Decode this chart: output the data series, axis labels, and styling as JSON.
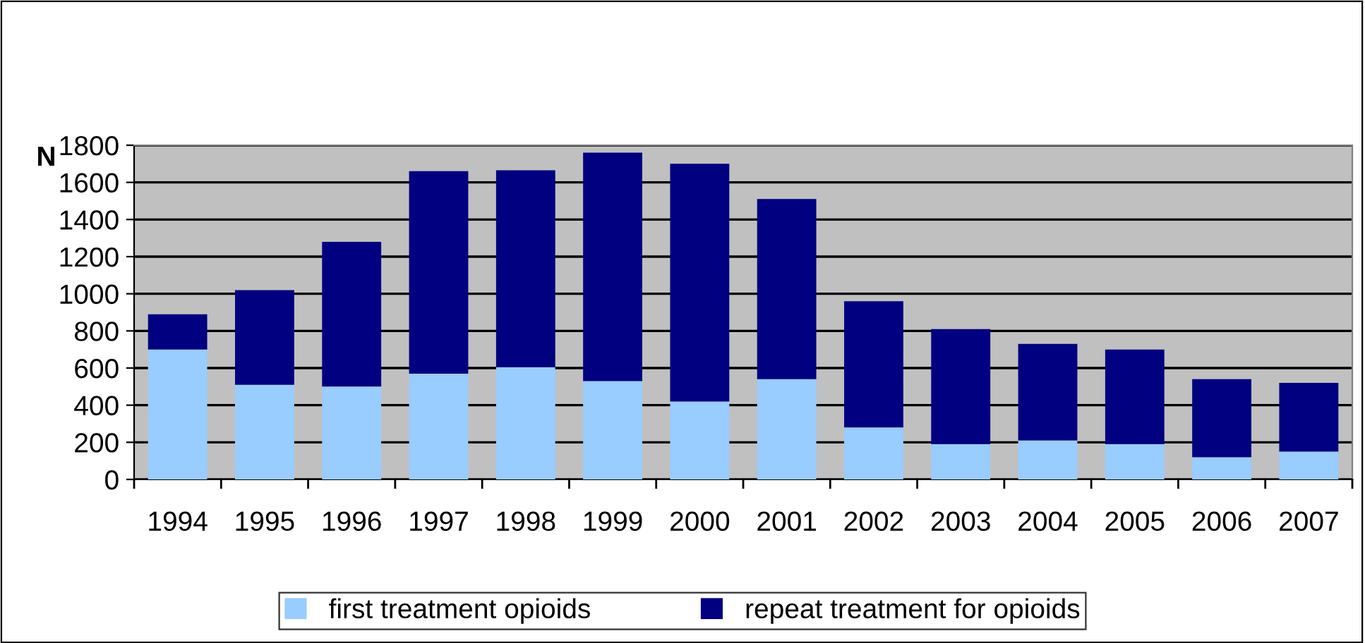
{
  "chart_data": {
    "type": "bar",
    "stacked": true,
    "ylabel": "N",
    "categories": [
      "1994",
      "1995",
      "1996",
      "1997",
      "1998",
      "1999",
      "2000",
      "2001",
      "2002",
      "2003",
      "2004",
      "2005",
      "2006",
      "2007"
    ],
    "series": [
      {
        "name": "first treatment opioids",
        "color": "#99ccff",
        "values": [
          700,
          510,
          500,
          570,
          605,
          530,
          420,
          540,
          280,
          190,
          210,
          190,
          120,
          150
        ]
      },
      {
        "name": "repeat treatment for opioids",
        "color": "#000080",
        "values": [
          190,
          510,
          780,
          1090,
          1060,
          1230,
          1280,
          970,
          680,
          620,
          520,
          510,
          420,
          370
        ]
      }
    ],
    "ylim": [
      0,
      1800
    ],
    "yticks": [
      0,
      200,
      400,
      600,
      800,
      1000,
      1200,
      1400,
      1600,
      1800
    ],
    "grid": "y",
    "legend": "bottom"
  }
}
